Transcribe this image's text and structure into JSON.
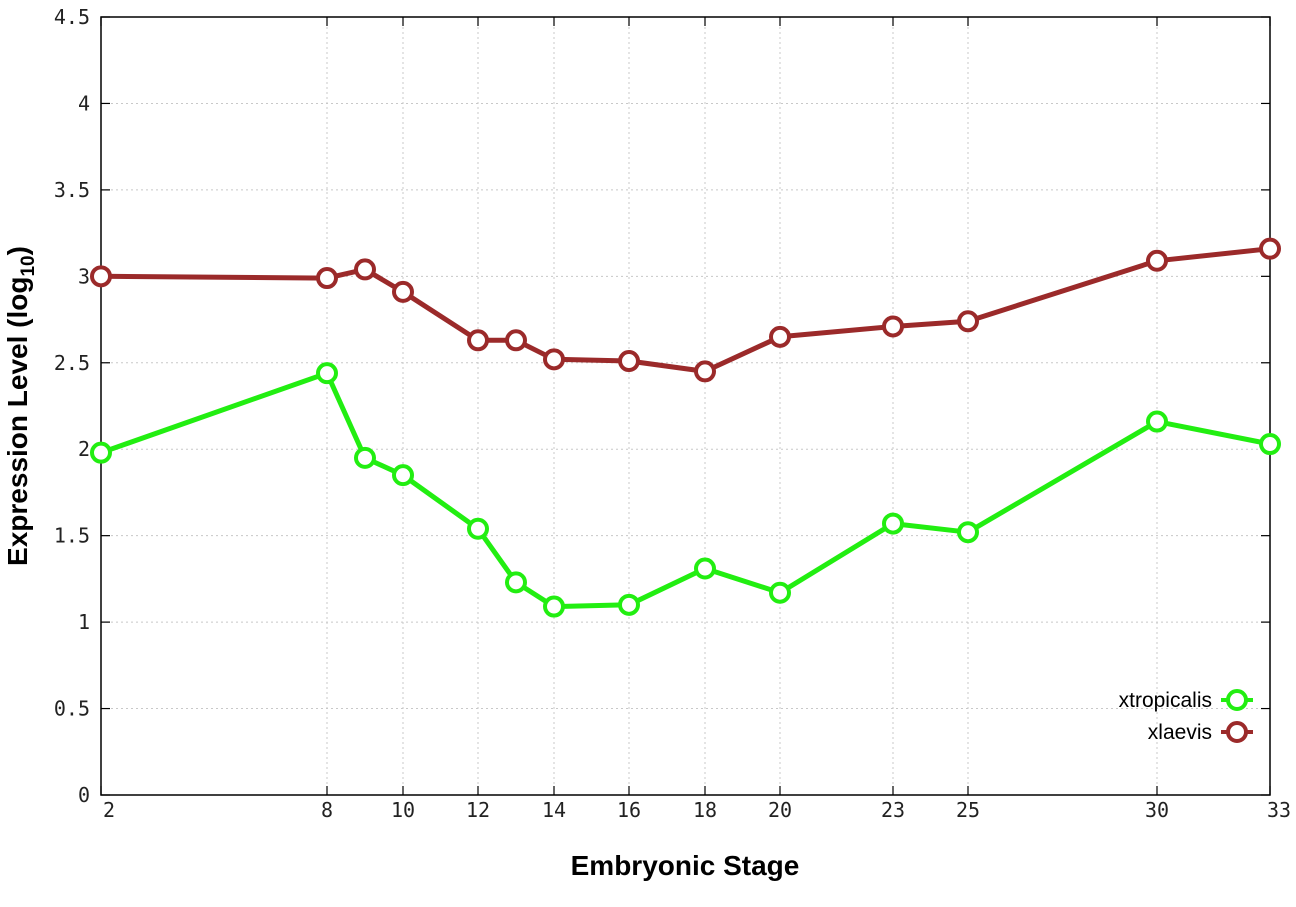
{
  "chart_data": {
    "type": "line",
    "title": "",
    "xlabel": "Embryonic Stage",
    "ylabel": "Expression Level (log",
    "ylabel_subscript": "10",
    "ylabel_close": ")",
    "x_ticks": [
      2,
      8,
      10,
      12,
      14,
      16,
      18,
      20,
      23,
      25,
      30,
      33
    ],
    "y_ticks": [
      "0",
      "0.5",
      "1",
      "1.5",
      "2",
      "2.5",
      "3",
      "3.5",
      "4",
      "4.5"
    ],
    "ylim": [
      0,
      4.5
    ],
    "grid": true,
    "legend_position": "bottom-right",
    "series": [
      {
        "name": "xtropicalis",
        "color": "#22ee11",
        "marker": "circle-open",
        "x": [
          2,
          8,
          9,
          10,
          12,
          13,
          14,
          16,
          18,
          20,
          23,
          25,
          30,
          33
        ],
        "y": [
          1.98,
          2.44,
          1.95,
          1.85,
          1.54,
          1.23,
          1.09,
          1.1,
          1.31,
          1.17,
          1.57,
          1.52,
          2.16,
          2.03
        ]
      },
      {
        "name": "xlaevis",
        "color": "#9b2a2a",
        "marker": "circle-open",
        "x": [
          2,
          8,
          9,
          10,
          12,
          13,
          14,
          16,
          18,
          20,
          23,
          25,
          30,
          33
        ],
        "y": [
          3.0,
          2.99,
          3.04,
          2.91,
          2.63,
          2.63,
          2.52,
          2.51,
          2.45,
          2.65,
          2.71,
          2.74,
          3.09,
          3.16
        ]
      }
    ]
  }
}
